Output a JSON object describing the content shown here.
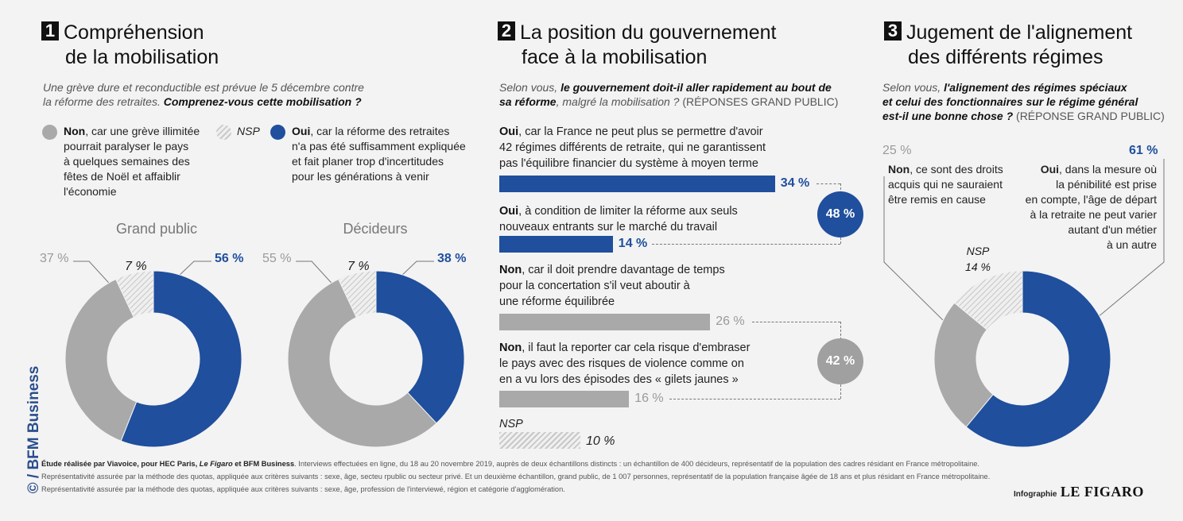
{
  "colors": {
    "blue": "#1f4f9d",
    "gray": "#a9a9a9",
    "nsp_hatch": "#c9c9c9"
  },
  "panel1": {
    "number": "1",
    "title_line1": "Compréhension",
    "title_line2": "de la mobilisation",
    "intro_line1": "Une grève dure et reconductible est prévue le 5 décembre contre",
    "intro_line2_plain": "la réforme des retraites.",
    "intro_line2_bold": "Comprenez-vous cette mobilisation ?",
    "legend_non_bold": "Non",
    "legend_non_lines": [
      ", car une grève illimitée",
      "pourrait paralyser le pays",
      "à quelques semaines des",
      "fêtes de Noël et affaiblir",
      "l'économie"
    ],
    "legend_nsp": "NSP",
    "legend_oui_bold": "Oui",
    "legend_oui_lines": [
      ", car la réforme des retraites",
      "n'a pas été suffisamment expliquée",
      "et fait planer trop d'incertitudes",
      "pour les générations à venir"
    ],
    "donut_gp_label": "Grand public",
    "donut_dec_label": "Décideurs"
  },
  "panel2": {
    "number": "2",
    "title_line1": "La position du gouvernement",
    "title_line2": "face à la mobilisation",
    "intro_line1_plain": "Selon vous,",
    "intro_line1_bold": "le gouvernement doit-il aller rapidement au bout de",
    "intro_line2_bold": "sa réforme",
    "intro_line2_plain": ", malgré la mobilisation ?",
    "intro_line2_upright": "(RÉPONSES GRAND PUBLIC)",
    "opt1_bold": "Oui",
    "opt1_lines": [
      ", car la France ne peut plus se permettre d'avoir",
      "42 régimes différents de retraite, qui ne garantissent",
      "pas l'équilibre financier du système à moyen terme"
    ],
    "opt2_bold": "Oui",
    "opt2_lines": [
      ", à condition de limiter la réforme aux seuls",
      "nouveaux entrants sur le marché du travail"
    ],
    "opt3_bold": "Non",
    "opt3_lines": [
      ", car il doit prendre davantage de temps",
      "pour la concertation s'il veut aboutir à",
      "une réforme équilibrée"
    ],
    "opt4_bold": "Non",
    "opt4_lines": [
      ", il faut la reporter car cela risque d'embraser",
      "le pays avec des risques de violence comme on",
      "en a vu lors des épisodes des « gilets jaunes »"
    ],
    "opt5_label": "NSP",
    "group_oui_total": "48 %",
    "group_non_total": "42 %"
  },
  "panel3": {
    "number": "3",
    "title_line1": "Jugement de l'alignement",
    "title_line2": "des différents régimes",
    "intro_line1_plain": "Selon vous,",
    "intro_line1_bold": "l'alignement des régimes spéciaux",
    "intro_line2_bold": "et celui des fonctionnaires sur le régime général",
    "intro_line3_bold": "est-il une bonne chose ?",
    "intro_line3_upright": "(RÉPONSE GRAND PUBLIC)",
    "non_pct": "25 %",
    "non_bold": "Non",
    "non_lines": [
      ", ce sont des droits",
      "acquis qui ne sauraient",
      "être remis en cause"
    ],
    "oui_pct": "61 %",
    "oui_bold": "Oui",
    "oui_lines": [
      ", dans la mesure où",
      "la pénibilité est prise",
      "en compte, l'âge de départ",
      "à la retraite ne peut varier",
      "autant d'un métier",
      "à un autre"
    ],
    "nsp_label": "NSP",
    "nsp_pct": "14 %"
  },
  "chart_data": [
    {
      "type": "pie",
      "title": "Grand public",
      "categories": [
        "Non",
        "NSP",
        "Oui"
      ],
      "values": [
        37,
        7,
        56
      ],
      "labels": [
        "37 %",
        "7 %",
        "56 %"
      ]
    },
    {
      "type": "pie",
      "title": "Décideurs",
      "categories": [
        "Non",
        "NSP",
        "Oui"
      ],
      "values": [
        55,
        7,
        38
      ],
      "labels": [
        "55 %",
        "7 %",
        "38 %"
      ]
    },
    {
      "type": "bar",
      "title": "",
      "categories": [
        "Oui (a)",
        "Oui (b)",
        "Non (a)",
        "Non (b)",
        "NSP"
      ],
      "values": [
        34,
        14,
        26,
        16,
        10
      ],
      "labels": [
        "34 %",
        "14 %",
        "26 %",
        "16 %",
        "10 %"
      ]
    },
    {
      "type": "pie",
      "title": "",
      "categories": [
        "Non",
        "NSP",
        "Oui"
      ],
      "values": [
        25,
        14,
        61
      ]
    }
  ],
  "footer": {
    "line1_bold1": "Étude réalisée par Viavoice, pour HEC Paris,",
    "line1_bold_italic": "Le Figaro",
    "line1_bold2": "et BFM Business",
    "line1_plain": ". Interviews effectuées en ligne, du 18 au 20 novembre 2019, auprès de deux échantillons distincts : un échantillon de 400 décideurs, représentatif de la population des cadres résidant en France métropolitaine.",
    "line2": "Représentativité assurée par la méthode des quotas, appliquée aux critères suivants : sexe, âge, secteu rpublic ou secteur privé. Et un deuxième échantillon, grand public, de 1 007 personnes, représentatif de la population française âgée de 18 ans et plus résidant en France métropolitaine.",
    "line3": "Représentativité assurée par la méthode des quotas, appliquée aux critères suivants : sexe, âge, profession de l'interviewé, région et catégorie d'agglomération.",
    "credit": "Infographie",
    "brand": "LE FIGARO"
  },
  "side_credit": "© / BFM Business"
}
